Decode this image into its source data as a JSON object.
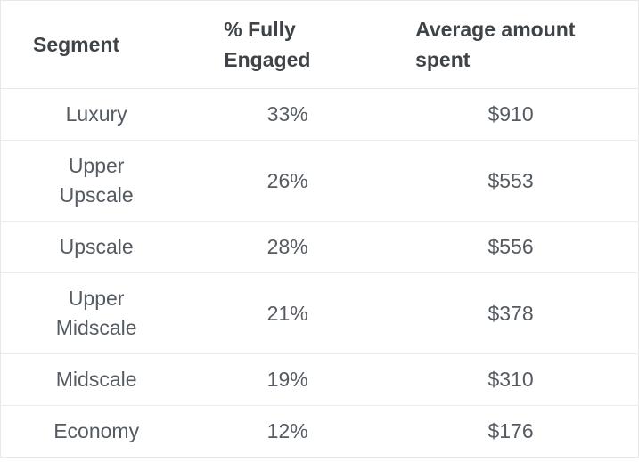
{
  "table": {
    "columns": [
      {
        "label": "Segment"
      },
      {
        "label": "% Fully\nEngaged"
      },
      {
        "label": "Average amount\nspent"
      }
    ],
    "rows": [
      {
        "cells": [
          "Luxury",
          "33%",
          "$910"
        ]
      },
      {
        "cells": [
          "Upper\nUpscale",
          "26%",
          "$553"
        ]
      },
      {
        "cells": [
          "Upscale",
          "28%",
          "$556"
        ]
      },
      {
        "cells": [
          "Upper\nMidscale",
          "21%",
          "$378"
        ]
      },
      {
        "cells": [
          "Midscale",
          "19%",
          "$310"
        ]
      },
      {
        "cells": [
          "Economy",
          "12%",
          "$176"
        ]
      }
    ]
  },
  "chart_data": {
    "type": "table",
    "columns": [
      "Segment",
      "% Fully Engaged",
      "Average amount spent"
    ],
    "categories": [
      "Luxury",
      "Upper Upscale",
      "Upscale",
      "Upper Midscale",
      "Midscale",
      "Economy"
    ],
    "series": [
      {
        "name": "% Fully Engaged",
        "unit": "%",
        "values": [
          33,
          26,
          28,
          21,
          19,
          12
        ]
      },
      {
        "name": "Average amount spent",
        "unit": "$",
        "values": [
          910,
          553,
          556,
          378,
          310,
          176
        ]
      }
    ]
  },
  "colors": {
    "header_text": "#3e4347",
    "body_text": "#545b62",
    "border": "#e8e8e8",
    "background": "#ffffff"
  }
}
